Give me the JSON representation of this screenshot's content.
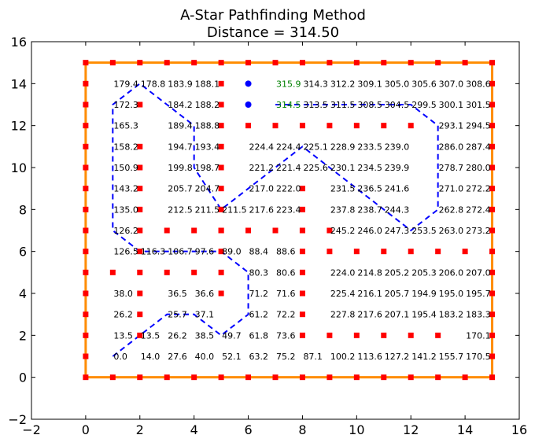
{
  "chart_data": {
    "type": "scatter",
    "title": "A-Star Pathfinding Method",
    "subtitle": "Distance = 314.50",
    "xlabel": "",
    "ylabel": "",
    "xlim": [
      -2,
      16
    ],
    "ylim": [
      -2,
      16
    ],
    "xticks": [
      -2,
      0,
      2,
      4,
      6,
      8,
      10,
      12,
      14,
      16
    ],
    "yticks": [
      -2,
      0,
      2,
      4,
      6,
      8,
      10,
      12,
      14,
      16
    ],
    "tick_labels_x": [
      "−2",
      "0",
      "2",
      "4",
      "6",
      "8",
      "10",
      "12",
      "14",
      "16"
    ],
    "tick_labels_y": [
      "−2",
      "0",
      "2",
      "4",
      "6",
      "8",
      "10",
      "12",
      "14",
      "16"
    ],
    "grid": false,
    "colors": {
      "boundary": "#ff8c00",
      "obstacle": "#ff0000",
      "path": "#0000ff",
      "goal_cost": "#008000",
      "cost": "#000000"
    },
    "boundary": [
      [
        0,
        0
      ],
      [
        15,
        0
      ],
      [
        15,
        15
      ],
      [
        0,
        15
      ],
      [
        0,
        0
      ]
    ],
    "obstacles": [
      [
        0,
        0
      ],
      [
        1,
        0
      ],
      [
        2,
        0
      ],
      [
        3,
        0
      ],
      [
        4,
        0
      ],
      [
        5,
        0
      ],
      [
        6,
        0
      ],
      [
        7,
        0
      ],
      [
        8,
        0
      ],
      [
        9,
        0
      ],
      [
        10,
        0
      ],
      [
        11,
        0
      ],
      [
        12,
        0
      ],
      [
        13,
        0
      ],
      [
        14,
        0
      ],
      [
        15,
        0
      ],
      [
        0,
        15
      ],
      [
        1,
        15
      ],
      [
        2,
        15
      ],
      [
        3,
        15
      ],
      [
        4,
        15
      ],
      [
        5,
        15
      ],
      [
        6,
        15
      ],
      [
        7,
        15
      ],
      [
        8,
        15
      ],
      [
        9,
        15
      ],
      [
        10,
        15
      ],
      [
        11,
        15
      ],
      [
        12,
        15
      ],
      [
        13,
        15
      ],
      [
        14,
        15
      ],
      [
        15,
        15
      ],
      [
        0,
        1
      ],
      [
        0,
        2
      ],
      [
        0,
        3
      ],
      [
        0,
        4
      ],
      [
        0,
        5
      ],
      [
        0,
        6
      ],
      [
        0,
        7
      ],
      [
        0,
        8
      ],
      [
        0,
        9
      ],
      [
        0,
        10
      ],
      [
        0,
        11
      ],
      [
        0,
        12
      ],
      [
        0,
        13
      ],
      [
        0,
        14
      ],
      [
        15,
        1
      ],
      [
        15,
        2
      ],
      [
        15,
        3
      ],
      [
        15,
        4
      ],
      [
        15,
        5
      ],
      [
        15,
        6
      ],
      [
        15,
        7
      ],
      [
        15,
        8
      ],
      [
        15,
        9
      ],
      [
        15,
        10
      ],
      [
        15,
        11
      ],
      [
        15,
        12
      ],
      [
        15,
        13
      ],
      [
        15,
        14
      ],
      [
        2,
        2
      ],
      [
        2,
        3
      ],
      [
        2,
        4
      ],
      [
        2,
        5
      ],
      [
        2,
        6
      ],
      [
        2,
        7
      ],
      [
        2,
        8
      ],
      [
        2,
        9
      ],
      [
        2,
        10
      ],
      [
        2,
        11
      ],
      [
        2,
        13
      ],
      [
        5,
        4
      ],
      [
        5,
        5
      ],
      [
        5,
        6
      ],
      [
        5,
        7
      ],
      [
        5,
        8
      ],
      [
        5,
        9
      ],
      [
        5,
        10
      ],
      [
        5,
        11
      ],
      [
        5,
        12
      ],
      [
        5,
        13
      ],
      [
        5,
        14
      ],
      [
        1,
        5
      ],
      [
        3,
        5
      ],
      [
        4,
        5
      ],
      [
        3,
        7
      ],
      [
        4,
        7
      ],
      [
        5,
        7
      ],
      [
        6,
        7
      ],
      [
        7,
        7
      ],
      [
        8,
        7
      ],
      [
        9,
        7
      ],
      [
        6,
        12
      ],
      [
        7,
        12
      ],
      [
        8,
        12
      ],
      [
        9,
        12
      ],
      [
        10,
        12
      ],
      [
        11,
        12
      ],
      [
        12,
        12
      ],
      [
        8,
        2
      ],
      [
        8,
        3
      ],
      [
        8,
        4
      ],
      [
        8,
        5
      ],
      [
        8,
        6
      ],
      [
        8,
        7
      ],
      [
        8,
        8
      ],
      [
        8,
        9
      ],
      [
        9,
        6
      ],
      [
        10,
        6
      ],
      [
        11,
        6
      ],
      [
        12,
        6
      ],
      [
        13,
        6
      ],
      [
        14,
        6
      ],
      [
        9,
        2
      ],
      [
        10,
        2
      ],
      [
        11,
        2
      ],
      [
        12,
        2
      ],
      [
        13,
        2
      ]
    ],
    "goal_points": [
      [
        6,
        14
      ],
      [
        6,
        13
      ]
    ],
    "path": [
      [
        1,
        1
      ],
      [
        2,
        2
      ],
      [
        3,
        3
      ],
      [
        4,
        3
      ],
      [
        5,
        2
      ],
      [
        6,
        3
      ],
      [
        6,
        5
      ],
      [
        5,
        6
      ],
      [
        3,
        6
      ],
      [
        2,
        6
      ],
      [
        1,
        7
      ],
      [
        1,
        13
      ],
      [
        2,
        14
      ],
      [
        3,
        13
      ],
      [
        4,
        12
      ],
      [
        4,
        10
      ],
      [
        5,
        8
      ],
      [
        6,
        9
      ],
      [
        7,
        10
      ],
      [
        8,
        11
      ],
      [
        9,
        10
      ],
      [
        10,
        9
      ],
      [
        11,
        8
      ],
      [
        12,
        7
      ],
      [
        13,
        8
      ],
      [
        13,
        12
      ],
      [
        12,
        13
      ],
      [
        7,
        13
      ]
    ],
    "cost_labels": [
      {
        "x": 1,
        "y": 14,
        "text": "179.4"
      },
      {
        "x": 2,
        "y": 14,
        "text": "178.8"
      },
      {
        "x": 3,
        "y": 14,
        "text": "183.9"
      },
      {
        "x": 4,
        "y": 14,
        "text": "188.1"
      },
      {
        "x": 7,
        "y": 14,
        "text": "315.9",
        "goal": true
      },
      {
        "x": 8,
        "y": 14,
        "text": "314.3"
      },
      {
        "x": 9,
        "y": 14,
        "text": "312.2"
      },
      {
        "x": 10,
        "y": 14,
        "text": "309.1"
      },
      {
        "x": 11,
        "y": 14,
        "text": "305.0"
      },
      {
        "x": 12,
        "y": 14,
        "text": "305.6"
      },
      {
        "x": 13,
        "y": 14,
        "text": "307.0"
      },
      {
        "x": 14,
        "y": 14,
        "text": "308.6"
      },
      {
        "x": 1,
        "y": 13,
        "text": "172.3"
      },
      {
        "x": 3,
        "y": 13,
        "text": "184.2"
      },
      {
        "x": 4,
        "y": 13,
        "text": "188.2"
      },
      {
        "x": 7,
        "y": 13,
        "text": "314.5",
        "goal": true
      },
      {
        "x": 8,
        "y": 13,
        "text": "313.5"
      },
      {
        "x": 9,
        "y": 13,
        "text": "311.5"
      },
      {
        "x": 10,
        "y": 13,
        "text": "308.5"
      },
      {
        "x": 11,
        "y": 13,
        "text": "304.5"
      },
      {
        "x": 12,
        "y": 13,
        "text": "299.5"
      },
      {
        "x": 13,
        "y": 13,
        "text": "300.1"
      },
      {
        "x": 14,
        "y": 13,
        "text": "301.5"
      },
      {
        "x": 1,
        "y": 12,
        "text": "165.3"
      },
      {
        "x": 3,
        "y": 12,
        "text": "189.4"
      },
      {
        "x": 4,
        "y": 12,
        "text": "188.8"
      },
      {
        "x": 13,
        "y": 12,
        "text": "293.1"
      },
      {
        "x": 14,
        "y": 12,
        "text": "294.5"
      },
      {
        "x": 1,
        "y": 11,
        "text": "158.2"
      },
      {
        "x": 3,
        "y": 11,
        "text": "194.7"
      },
      {
        "x": 4,
        "y": 11,
        "text": "193.4"
      },
      {
        "x": 6,
        "y": 11,
        "text": "224.4"
      },
      {
        "x": 7,
        "y": 11,
        "text": "224.4"
      },
      {
        "x": 8,
        "y": 11,
        "text": "225.1"
      },
      {
        "x": 9,
        "y": 11,
        "text": "228.9"
      },
      {
        "x": 10,
        "y": 11,
        "text": "233.5"
      },
      {
        "x": 11,
        "y": 11,
        "text": "239.0"
      },
      {
        "x": 13,
        "y": 11,
        "text": "286.0"
      },
      {
        "x": 14,
        "y": 11,
        "text": "287.4"
      },
      {
        "x": 1,
        "y": 10,
        "text": "150.9"
      },
      {
        "x": 3,
        "y": 10,
        "text": "199.8"
      },
      {
        "x": 4,
        "y": 10,
        "text": "198.7"
      },
      {
        "x": 6,
        "y": 10,
        "text": "221.2"
      },
      {
        "x": 7,
        "y": 10,
        "text": "221.4"
      },
      {
        "x": 8,
        "y": 10,
        "text": "225.6"
      },
      {
        "x": 9,
        "y": 10,
        "text": "230.1"
      },
      {
        "x": 10,
        "y": 10,
        "text": "234.5"
      },
      {
        "x": 11,
        "y": 10,
        "text": "239.9"
      },
      {
        "x": 13,
        "y": 10,
        "text": "278.7"
      },
      {
        "x": 14,
        "y": 10,
        "text": "280.0"
      },
      {
        "x": 1,
        "y": 9,
        "text": "143.2"
      },
      {
        "x": 3,
        "y": 9,
        "text": "205.7"
      },
      {
        "x": 4,
        "y": 9,
        "text": "204.7"
      },
      {
        "x": 6,
        "y": 9,
        "text": "217.0"
      },
      {
        "x": 7,
        "y": 9,
        "text": "222.0"
      },
      {
        "x": 9,
        "y": 9,
        "text": "231.5"
      },
      {
        "x": 10,
        "y": 9,
        "text": "236.5"
      },
      {
        "x": 11,
        "y": 9,
        "text": "241.6"
      },
      {
        "x": 13,
        "y": 9,
        "text": "271.0"
      },
      {
        "x": 14,
        "y": 9,
        "text": "272.2"
      },
      {
        "x": 1,
        "y": 8,
        "text": "135.0"
      },
      {
        "x": 3,
        "y": 8,
        "text": "212.5"
      },
      {
        "x": 4,
        "y": 8,
        "text": "211.5"
      },
      {
        "x": 5,
        "y": 8,
        "text": "211.5"
      },
      {
        "x": 6,
        "y": 8,
        "text": "217.6"
      },
      {
        "x": 7,
        "y": 8,
        "text": "223.4"
      },
      {
        "x": 9,
        "y": 8,
        "text": "237.8"
      },
      {
        "x": 10,
        "y": 8,
        "text": "238.7"
      },
      {
        "x": 11,
        "y": 8,
        "text": "244.3"
      },
      {
        "x": 13,
        "y": 8,
        "text": "262.8"
      },
      {
        "x": 14,
        "y": 8,
        "text": "272.4"
      },
      {
        "x": 1,
        "y": 7,
        "text": "126.2"
      },
      {
        "x": 9,
        "y": 7,
        "text": "245.2"
      },
      {
        "x": 10,
        "y": 7,
        "text": "246.0"
      },
      {
        "x": 11,
        "y": 7,
        "text": "247.3"
      },
      {
        "x": 12,
        "y": 7,
        "text": "253.5"
      },
      {
        "x": 13,
        "y": 7,
        "text": "263.0"
      },
      {
        "x": 14,
        "y": 7,
        "text": "273.2"
      },
      {
        "x": 1,
        "y": 6,
        "text": "126.5"
      },
      {
        "x": 2,
        "y": 6,
        "text": "116.3"
      },
      {
        "x": 3,
        "y": 6,
        "text": "106.7"
      },
      {
        "x": 4,
        "y": 6,
        "text": "97.6"
      },
      {
        "x": 5,
        "y": 6,
        "text": "89.0"
      },
      {
        "x": 6,
        "y": 6,
        "text": "88.4"
      },
      {
        "x": 7,
        "y": 6,
        "text": "88.6"
      },
      {
        "x": 6,
        "y": 5,
        "text": "80.3"
      },
      {
        "x": 7,
        "y": 5,
        "text": "80.6"
      },
      {
        "x": 9,
        "y": 5,
        "text": "224.0"
      },
      {
        "x": 10,
        "y": 5,
        "text": "214.8"
      },
      {
        "x": 11,
        "y": 5,
        "text": "205.2"
      },
      {
        "x": 12,
        "y": 5,
        "text": "205.3"
      },
      {
        "x": 13,
        "y": 5,
        "text": "206.0"
      },
      {
        "x": 14,
        "y": 5,
        "text": "207.0"
      },
      {
        "x": 1,
        "y": 4,
        "text": "38.0"
      },
      {
        "x": 3,
        "y": 4,
        "text": "36.5"
      },
      {
        "x": 4,
        "y": 4,
        "text": "36.6"
      },
      {
        "x": 6,
        "y": 4,
        "text": "71.2"
      },
      {
        "x": 7,
        "y": 4,
        "text": "71.6"
      },
      {
        "x": 9,
        "y": 4,
        "text": "225.4"
      },
      {
        "x": 10,
        "y": 4,
        "text": "216.1"
      },
      {
        "x": 11,
        "y": 4,
        "text": "205.7"
      },
      {
        "x": 12,
        "y": 4,
        "text": "194.9"
      },
      {
        "x": 13,
        "y": 4,
        "text": "195.0"
      },
      {
        "x": 14,
        "y": 4,
        "text": "195.7"
      },
      {
        "x": 1,
        "y": 3,
        "text": "26.2"
      },
      {
        "x": 3,
        "y": 3,
        "text": "25.7"
      },
      {
        "x": 4,
        "y": 3,
        "text": "37.1"
      },
      {
        "x": 6,
        "y": 3,
        "text": "61.2"
      },
      {
        "x": 7,
        "y": 3,
        "text": "72.2"
      },
      {
        "x": 9,
        "y": 3,
        "text": "227.8"
      },
      {
        "x": 10,
        "y": 3,
        "text": "217.6"
      },
      {
        "x": 11,
        "y": 3,
        "text": "207.1"
      },
      {
        "x": 12,
        "y": 3,
        "text": "195.4"
      },
      {
        "x": 13,
        "y": 3,
        "text": "183.2"
      },
      {
        "x": 14,
        "y": 3,
        "text": "183.3"
      },
      {
        "x": 1,
        "y": 2,
        "text": "13.5"
      },
      {
        "x": 2,
        "y": 2,
        "text": "13.5"
      },
      {
        "x": 3,
        "y": 2,
        "text": "26.2"
      },
      {
        "x": 4,
        "y": 2,
        "text": "38.5"
      },
      {
        "x": 5,
        "y": 2,
        "text": "49.7"
      },
      {
        "x": 6,
        "y": 2,
        "text": "61.8"
      },
      {
        "x": 7,
        "y": 2,
        "text": "73.6"
      },
      {
        "x": 14,
        "y": 2,
        "text": "170.1"
      },
      {
        "x": 1,
        "y": 1,
        "text": "0.0"
      },
      {
        "x": 2,
        "y": 1,
        "text": "14.0"
      },
      {
        "x": 3,
        "y": 1,
        "text": "27.6"
      },
      {
        "x": 4,
        "y": 1,
        "text": "40.0"
      },
      {
        "x": 5,
        "y": 1,
        "text": "52.1"
      },
      {
        "x": 6,
        "y": 1,
        "text": "63.2"
      },
      {
        "x": 7,
        "y": 1,
        "text": "75.2"
      },
      {
        "x": 8,
        "y": 1,
        "text": "87.1"
      },
      {
        "x": 9,
        "y": 1,
        "text": "100.2"
      },
      {
        "x": 10,
        "y": 1,
        "text": "113.6"
      },
      {
        "x": 11,
        "y": 1,
        "text": "127.2"
      },
      {
        "x": 12,
        "y": 1,
        "text": "141.2"
      },
      {
        "x": 13,
        "y": 1,
        "text": "155.7"
      },
      {
        "x": 14,
        "y": 1,
        "text": "170.5"
      }
    ]
  }
}
